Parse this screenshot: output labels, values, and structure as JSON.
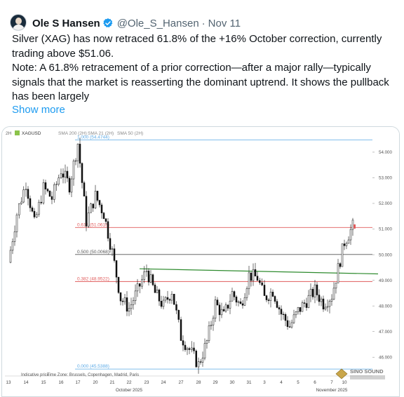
{
  "tweet": {
    "display_name": "Ole S Hansen",
    "handle": "@Ole_S_Hansen",
    "separator": "·",
    "date": "Nov 11",
    "paragraphs": [
      "Silver (XAG) has now retraced 61.8% of the +16% October correction, currently trading above $51.06.",
      "Note: A 61.8% retracement of a prior correction—after a major rally—typically signals that the market is reasserting the dominant uptrend. It shows the pullback has been largely"
    ],
    "show_more": "Show more",
    "icons": {
      "avatar": "avatar-photo",
      "verified": "verified-badge-icon"
    },
    "colors": {
      "link": "#1d9bf0",
      "verified": "#1d9bf0",
      "muted": "#536471"
    }
  },
  "chart": {
    "header": {
      "timeframe": "2H",
      "symbol": "XAGUSD",
      "indicators": [
        "SMA 200 (2H)",
        "SMA 21 (2H)",
        "SMA 50 (2H)"
      ]
    },
    "footer": {
      "note": "Indicative price",
      "timezone": "Time Zone: Brussels, Copenhagen, Madrid, Paris"
    },
    "watermark": "SINO SOUND",
    "colors": {
      "level_top": "#5aa9e6",
      "fib_red": "#e05b5b",
      "fib_mid": "#555555",
      "trendline": "#2e8b2e",
      "candles": "#111111"
    }
  },
  "chart_data": {
    "type": "candlestick",
    "y_axis": {
      "range": [
        45.35,
        54.6
      ],
      "ticks": [
        46.0,
        47.0,
        48.0,
        49.0,
        50.0,
        51.0,
        52.0,
        53.0,
        54.0
      ],
      "tick_labels": [
        "46.000",
        "47.000",
        "48.000",
        "49.000",
        "50.000",
        "51.000",
        "52.000",
        "53.000",
        "54.000"
      ]
    },
    "x_axis": {
      "tick_labels": [
        "13",
        "14",
        "15",
        "16",
        "17",
        "20",
        "21",
        "22",
        "23",
        "24",
        "27",
        "28",
        "29",
        "30",
        "31",
        "3",
        "4",
        "5",
        "6",
        "7",
        "10"
      ],
      "month_labels": [
        {
          "label": "October 2025",
          "at": "22"
        },
        {
          "label": "November 2025",
          "at": "7"
        }
      ]
    },
    "levels": [
      {
        "label": "1.000 (54.4744)",
        "value": 54.4744,
        "style": "blue"
      },
      {
        "label": "0.618 (51.0618)",
        "value": 51.0618,
        "style": "red"
      },
      {
        "label": "0.500 (50.0068)",
        "value": 50.0068,
        "style": "gray"
      },
      {
        "label": "0.382 (48.9522)",
        "value": 48.9522,
        "style": "red"
      },
      {
        "label": "0.000 (45.5388)",
        "value": 45.5388,
        "style": "blue"
      }
    ],
    "trendline": {
      "start": {
        "day": "23",
        "value": 49.45
      },
      "end": {
        "day": "10",
        "value": 49.25
      }
    },
    "price_path": [
      {
        "day": "13",
        "price": 49.7
      },
      {
        "day": "13",
        "price": 51.6
      },
      {
        "day": "14",
        "price": 52.8
      },
      {
        "day": "14",
        "price": 51.2
      },
      {
        "day": "15",
        "price": 52.6
      },
      {
        "day": "15",
        "price": 52.2
      },
      {
        "day": "16",
        "price": 53.3
      },
      {
        "day": "16",
        "price": 52.7
      },
      {
        "day": "17",
        "price": 54.35
      },
      {
        "day": "17",
        "price": 51.3
      },
      {
        "day": "20",
        "price": 52.3
      },
      {
        "day": "20",
        "price": 51.6
      },
      {
        "day": "21",
        "price": 50.1
      },
      {
        "day": "21",
        "price": 48.3
      },
      {
        "day": "22",
        "price": 47.9
      },
      {
        "day": "22",
        "price": 48.6
      },
      {
        "day": "23",
        "price": 49.4
      },
      {
        "day": "23",
        "price": 48.5
      },
      {
        "day": "24",
        "price": 48.0
      },
      {
        "day": "24",
        "price": 48.6
      },
      {
        "day": "27",
        "price": 46.8
      },
      {
        "day": "27",
        "price": 46.3
      },
      {
        "day": "28",
        "price": 45.7
      },
      {
        "day": "28",
        "price": 46.6
      },
      {
        "day": "29",
        "price": 48.1
      },
      {
        "day": "29",
        "price": 47.6
      },
      {
        "day": "30",
        "price": 48.5
      },
      {
        "day": "30",
        "price": 48.0
      },
      {
        "day": "31",
        "price": 49.2
      },
      {
        "day": "31",
        "price": 49.1
      },
      {
        "day": "3",
        "price": 48.3
      },
      {
        "day": "3",
        "price": 48.6
      },
      {
        "day": "4",
        "price": 47.7
      },
      {
        "day": "4",
        "price": 47.2
      },
      {
        "day": "5",
        "price": 47.8
      },
      {
        "day": "5",
        "price": 48.2
      },
      {
        "day": "6",
        "price": 48.6
      },
      {
        "day": "6",
        "price": 48.1
      },
      {
        "day": "7",
        "price": 48.4
      },
      {
        "day": "7",
        "price": 49.8
      },
      {
        "day": "10",
        "price": 50.5
      },
      {
        "day": "10",
        "price": 51.1
      }
    ]
  }
}
